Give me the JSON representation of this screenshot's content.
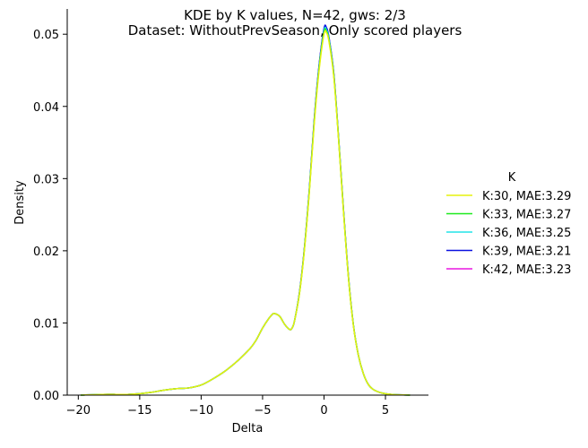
{
  "chart_data": {
    "type": "line",
    "title_line1": "KDE by K values, N=42, gws: 2/3",
    "title_line2": "Dataset: WithoutPrevSeason, Only scored players",
    "xlabel": "Delta",
    "ylabel": "Density",
    "xlim": [
      -20.9,
      8.5
    ],
    "ylim": [
      0,
      0.0535
    ],
    "xticks": [
      -20,
      -15,
      -10,
      -5,
      0,
      5
    ],
    "xtick_labels": [
      "−20",
      "−15",
      "−10",
      "−5",
      "0",
      "5"
    ],
    "yticks": [
      0.0,
      0.01,
      0.02,
      0.03,
      0.04,
      0.05
    ],
    "ytick_labels": [
      "0.00",
      "0.01",
      "0.02",
      "0.03",
      "0.04",
      "0.05"
    ],
    "grid": false,
    "legend_title": "K",
    "legend_position": "right",
    "x": [
      -19.8,
      -18,
      -16,
      -15,
      -14,
      -13,
      -12,
      -11,
      -10,
      -9,
      -8,
      -7,
      -6,
      -5.5,
      -5,
      -4.5,
      -4.2,
      -4,
      -3.6,
      -3.2,
      -2.8,
      -2.6,
      -2.4,
      -2.0,
      -1.6,
      -1.2,
      -0.8,
      -0.4,
      0.0,
      0.2,
      0.4,
      0.8,
      1.2,
      1.6,
      2.0,
      2.4,
      2.8,
      3.2,
      3.6,
      4.0,
      4.5,
      5.0,
      5.5,
      6.0,
      7.0
    ],
    "series": [
      {
        "name": "K:30, MAE:3.29",
        "color": "#e6f20d",
        "values": [
          0.0,
          0.0001,
          0.0001,
          0.0002,
          0.0004,
          0.0007,
          0.0009,
          0.001,
          0.0014,
          0.0023,
          0.0034,
          0.0048,
          0.0065,
          0.0077,
          0.0093,
          0.0106,
          0.0112,
          0.0113,
          0.0109,
          0.0098,
          0.0091,
          0.0093,
          0.0103,
          0.014,
          0.02,
          0.028,
          0.0375,
          0.045,
          0.05,
          0.0502,
          0.049,
          0.044,
          0.035,
          0.025,
          0.016,
          0.0095,
          0.0055,
          0.003,
          0.0015,
          0.0008,
          0.0004,
          0.0002,
          0.0001,
          5e-05,
          0.0
        ]
      },
      {
        "name": "K:33, MAE:3.27",
        "color": "#1de91d",
        "values": [
          0.0,
          0.0001,
          0.0001,
          0.0002,
          0.0004,
          0.0007,
          0.0009,
          0.001,
          0.0014,
          0.0023,
          0.0034,
          0.0048,
          0.0065,
          0.0077,
          0.0093,
          0.0106,
          0.0112,
          0.0113,
          0.0109,
          0.0098,
          0.0091,
          0.0093,
          0.0103,
          0.0141,
          0.0202,
          0.0282,
          0.0378,
          0.0453,
          0.0503,
          0.0504,
          0.0492,
          0.0442,
          0.0352,
          0.0252,
          0.0161,
          0.0096,
          0.0055,
          0.003,
          0.0015,
          0.0008,
          0.0004,
          0.0002,
          0.0001,
          5e-05,
          0.0
        ]
      },
      {
        "name": "K:36, MAE:3.25",
        "color": "#22e3e8",
        "values": [
          0.0,
          0.0001,
          0.0001,
          0.0002,
          0.0004,
          0.0007,
          0.0009,
          0.001,
          0.0014,
          0.0023,
          0.0034,
          0.0048,
          0.0065,
          0.0077,
          0.0093,
          0.0106,
          0.0112,
          0.0113,
          0.0109,
          0.0098,
          0.0091,
          0.0093,
          0.0103,
          0.0141,
          0.0202,
          0.0283,
          0.0379,
          0.0455,
          0.0505,
          0.0506,
          0.0494,
          0.0443,
          0.0352,
          0.0252,
          0.0161,
          0.0096,
          0.0055,
          0.003,
          0.0015,
          0.0008,
          0.0004,
          0.0002,
          0.0001,
          5e-05,
          0.0
        ]
      },
      {
        "name": "K:39, MAE:3.21",
        "color": "#0a10e0",
        "values": [
          0.0,
          0.0001,
          0.0001,
          0.0002,
          0.0004,
          0.0007,
          0.0009,
          0.001,
          0.0014,
          0.0023,
          0.0034,
          0.0048,
          0.0065,
          0.0077,
          0.0093,
          0.0106,
          0.0112,
          0.0113,
          0.0109,
          0.0098,
          0.0091,
          0.0093,
          0.0103,
          0.0142,
          0.0203,
          0.0284,
          0.0381,
          0.0457,
          0.0508,
          0.0509,
          0.0496,
          0.0445,
          0.0353,
          0.0253,
          0.0162,
          0.0096,
          0.0055,
          0.003,
          0.0015,
          0.0008,
          0.0004,
          0.0002,
          0.0001,
          5e-05,
          0.0
        ]
      },
      {
        "name": "K:42, MAE:3.23",
        "color": "#e817e0",
        "values": [
          0.0,
          0.0001,
          0.0001,
          0.0002,
          0.0004,
          0.0007,
          0.0009,
          0.001,
          0.0014,
          0.0023,
          0.0034,
          0.0048,
          0.0065,
          0.0077,
          0.0093,
          0.0106,
          0.0112,
          0.0113,
          0.0109,
          0.0098,
          0.0091,
          0.0093,
          0.0103,
          0.0142,
          0.0203,
          0.0284,
          0.0381,
          0.0457,
          0.0507,
          0.0508,
          0.0495,
          0.0444,
          0.0353,
          0.0253,
          0.0162,
          0.0096,
          0.0055,
          0.003,
          0.0015,
          0.0008,
          0.0004,
          0.0002,
          0.0001,
          5e-05,
          0.0
        ]
      }
    ]
  }
}
